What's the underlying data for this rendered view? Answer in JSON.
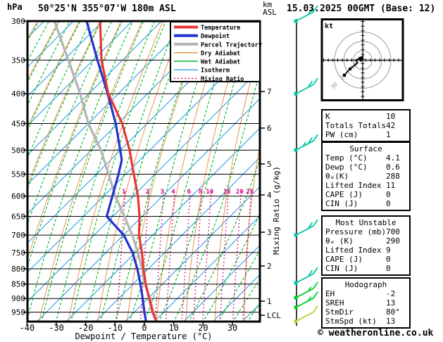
{
  "header": {
    "pressure_unit": "hPa",
    "title": "50°25'N 355°07'W 180m ASL",
    "alt_unit_line1": "km",
    "alt_unit_line2": "ASL",
    "datetime": "15.03.2025 00GMT (Base: 12)"
  },
  "legend": {
    "items": [
      {
        "label": "Temperature",
        "color": "#e83538",
        "width": 4,
        "dash": ""
      },
      {
        "label": "Dewpoint",
        "color": "#2233cc",
        "width": 4,
        "dash": ""
      },
      {
        "label": "Parcel Trajectory",
        "color": "#b3b3b3",
        "width": 4,
        "dash": ""
      },
      {
        "label": "Dry Adiabat",
        "color": "#e5954a",
        "width": 1.5,
        "dash": ""
      },
      {
        "label": "Wet Adiabat",
        "color": "#00b82a",
        "width": 1.5,
        "dash": ""
      },
      {
        "label": "Isotherm",
        "color": "#3aa5e5",
        "width": 1.5,
        "dash": ""
      },
      {
        "label": "Mixing Ratio",
        "color": "#dd0080",
        "width": 1.5,
        "dash": "2 3"
      }
    ]
  },
  "axes": {
    "pressure_ticks": [
      300,
      350,
      400,
      450,
      500,
      550,
      600,
      650,
      700,
      750,
      800,
      850,
      900,
      950
    ],
    "temp_ticks": [
      -40,
      -30,
      -20,
      -10,
      0,
      10,
      20,
      30
    ],
    "x_title": "Dewpoint / Temperature (°C)",
    "km_ticks": [
      7,
      6,
      5,
      4,
      3,
      2,
      1
    ],
    "lcl_label": "LCL",
    "mixing_axis_label": "Mixing Ratio (g/kg)"
  },
  "chart_data": {
    "type": "skew-t-log-p-sounding",
    "pressure_range_hpa": [
      300,
      986
    ],
    "temp_axis_range_c": [
      -40,
      39
    ],
    "isotherm_step_c": 10,
    "dry_adiabat_step_c": 10,
    "wet_adiabat_step_c": 5,
    "mixing_ratio_labels_g_kg": [
      1,
      2,
      3,
      4,
      6,
      8,
      10,
      15,
      20,
      25
    ],
    "series": [
      {
        "name": "Temperature",
        "color": "#e83538",
        "points_p_T": [
          [
            300,
            -53.2
          ],
          [
            350,
            -47.8
          ],
          [
            400,
            -41.2
          ],
          [
            450,
            -32.7
          ],
          [
            500,
            -26.8
          ],
          [
            550,
            -22.3
          ],
          [
            600,
            -18.1
          ],
          [
            650,
            -15.0
          ],
          [
            700,
            -12.8
          ],
          [
            750,
            -9.6
          ],
          [
            800,
            -7.0
          ],
          [
            850,
            -4.3
          ],
          [
            900,
            -1.3
          ],
          [
            950,
            1.6
          ],
          [
            986,
            4.1
          ]
        ]
      },
      {
        "name": "Dewpoint",
        "color": "#2233cc",
        "points_p_T": [
          [
            300,
            -57.8
          ],
          [
            350,
            -49.2
          ],
          [
            400,
            -41.4
          ],
          [
            450,
            -34.9
          ],
          [
            500,
            -30.0
          ],
          [
            520,
            -28.2
          ],
          [
            550,
            -27.5
          ],
          [
            600,
            -26.8
          ],
          [
            650,
            -26.2
          ],
          [
            700,
            -18.0
          ],
          [
            750,
            -12.8
          ],
          [
            800,
            -9.1
          ],
          [
            850,
            -6.1
          ],
          [
            900,
            -3.5
          ],
          [
            950,
            -1.2
          ],
          [
            986,
            0.6
          ]
        ]
      },
      {
        "name": "Parcel Trajectory",
        "color": "#b3b3b3",
        "points_p_T": [
          [
            300,
            -68.8
          ],
          [
            350,
            -59.1
          ],
          [
            400,
            -50.8
          ],
          [
            450,
            -44.2
          ],
          [
            500,
            -36.6
          ],
          [
            550,
            -30.9
          ],
          [
            600,
            -25.8
          ],
          [
            650,
            -20.2
          ],
          [
            700,
            -15.1
          ],
          [
            750,
            -11.0
          ],
          [
            800,
            -7.5
          ],
          [
            850,
            -4.6
          ],
          [
            900,
            -1.0
          ],
          [
            950,
            1.9
          ],
          [
            986,
            4.1
          ]
        ]
      }
    ],
    "wind_barbs": [
      {
        "pressure": 300,
        "speed_kt": 20,
        "color": "#00c8a5"
      },
      {
        "pressure": 400,
        "speed_kt": 20,
        "color": "#00c8a5"
      },
      {
        "pressure": 500,
        "speed_kt": 25,
        "color": "#00c8a5"
      },
      {
        "pressure": 700,
        "speed_kt": 20,
        "color": "#00c8a5"
      },
      {
        "pressure": 846,
        "speed_kt": 20,
        "color": "#00c8a5"
      },
      {
        "pressure": 897,
        "speed_kt": 15,
        "color": "#00d028"
      },
      {
        "pressure": 932,
        "speed_kt": 15,
        "color": "#00d028"
      },
      {
        "pressure": 985,
        "speed_kt": 10,
        "color": "#aad437"
      }
    ]
  },
  "hodograph": {
    "unit": "kt",
    "rings_kt": [
      10,
      20,
      30
    ],
    "ring_labels": [
      "10",
      "20",
      "30"
    ],
    "trace_uv_kt": [
      [
        -2.3,
        1.9
      ],
      [
        -7.5,
        -0.4
      ],
      [
        -5.3,
        -2.6
      ],
      [
        -9.8,
        -6.4
      ],
      [
        -13.5,
        -9.4
      ],
      [
        -16.5,
        -12.4
      ],
      [
        -19.5,
        -16.1
      ]
    ],
    "marker_uv_kt": [
      [
        -13.5,
        -9.4
      ],
      [
        -19.5,
        -16.1
      ]
    ]
  },
  "panels": [
    {
      "header": "",
      "rows": [
        [
          "K",
          "10"
        ],
        [
          "Totals Totals",
          "42"
        ],
        [
          "PW (cm)",
          "1"
        ]
      ]
    },
    {
      "header": "Surface",
      "rows": [
        [
          "Temp (°C)",
          "4.1"
        ],
        [
          "Dewp (°C)",
          "0.6"
        ],
        [
          "θₑ(K)",
          "288"
        ],
        [
          "Lifted Index",
          "11"
        ],
        [
          "CAPE (J)",
          "0"
        ],
        [
          "CIN (J)",
          "0"
        ]
      ]
    },
    {
      "header": "Most Unstable",
      "rows": [
        [
          "Pressure (mb)",
          "700"
        ],
        [
          "θₑ (K)",
          "290"
        ],
        [
          "Lifted Index",
          "9"
        ],
        [
          "CAPE (J)",
          "0"
        ],
        [
          "CIN (J)",
          "0"
        ]
      ]
    },
    {
      "header": "Hodograph",
      "rows": [
        [
          "EH",
          "-2"
        ],
        [
          "SREH",
          "13"
        ],
        [
          "StmDir",
          "80°"
        ],
        [
          "StmSpd (kt)",
          "13"
        ]
      ]
    }
  ],
  "copyright": "© weatheronline.co.uk"
}
